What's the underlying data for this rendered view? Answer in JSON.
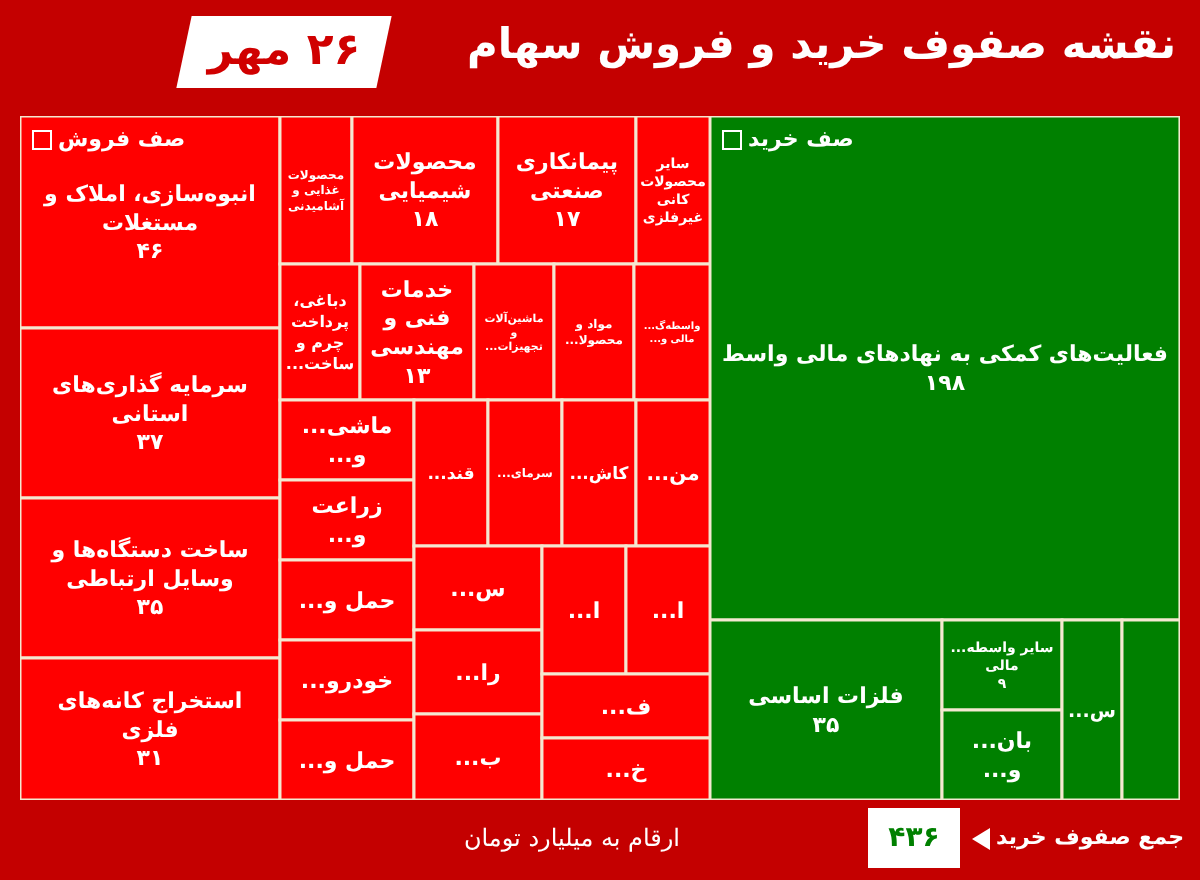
{
  "chart_data": {
    "type": "other",
    "title": "نقشه صفوف خرید و فروش سهام",
    "subtitle": "۲۶ مهر",
    "annotations": [
      "صف فروش",
      "صف خرید",
      "ارقام به میلیارد تومان",
      "جمع صفوف خرید",
      "۴۳۶"
    ],
    "categories": [
      "انبوه‌سازی، املاک و مستغلات",
      "سرمایه گذاری‌های استانی",
      "ساخت دستگاه‌ها و وسایل ارتباطی",
      "استخراج کانه‌های فلزی",
      "محصولات غذایی و آشامیدنی",
      "محصولات شیمیایی",
      "پیمانکاری صنعتی",
      "سایر محصولات کانی غیرفلزی",
      "دباغی، پرداخت چرم و ساخت...",
      "خدمات فنی و مهندسی",
      "ماشین‌آلات و تجهیزات...",
      "مواد و محصولا...",
      "واسطه‌گ... مالی و...",
      "ماشی... و...",
      "زراعت و...",
      "حمل و...",
      "خودرو...",
      "حمل و...",
      "قند...",
      "سرمای...",
      "کاش...",
      "من...",
      "س...",
      "را...",
      "ب...",
      "ا...",
      "ا...",
      "ف...",
      "خ...",
      "فعالیت‌های کمکی به نهادهای مالی واسط",
      "فلزات اساسی",
      "سایر واسطه... مالی",
      "بان... و...",
      "س...",
      null
    ],
    "values": [
      46,
      37,
      35,
      31,
      null,
      18,
      17,
      null,
      null,
      13,
      null,
      null,
      null,
      null,
      null,
      null,
      null,
      null,
      null,
      null,
      null,
      null,
      null,
      null,
      null,
      null,
      null,
      null,
      null,
      198,
      35,
      9,
      null,
      null,
      null
    ],
    "value_labels": [
      "۴۶",
      "۳۷",
      "۳۵",
      "۳۱",
      null,
      "۱۸",
      "۱۷",
      null,
      null,
      "۱۳",
      null,
      null,
      null,
      null,
      null,
      null,
      null,
      null,
      null,
      null,
      null,
      null,
      null,
      null,
      null,
      null,
      null,
      null,
      null,
      "۱۹۸",
      "۳۵",
      "۹",
      null,
      null,
      null
    ],
    "colors": [
      "#ff0000",
      "#ff0000",
      "#ff0000",
      "#ff0000",
      "#ff0000",
      "#ff0000",
      "#ff0000",
      "#ff0000",
      "#ff0000",
      "#ff0000",
      "#ff0000",
      "#ff0000",
      "#ff0000",
      "#ff0000",
      "#ff0000",
      "#ff0000",
      "#ff0000",
      "#ff0000",
      "#ff0000",
      "#ff0000",
      "#ff0000",
      "#ff0000",
      "#ff0000",
      "#ff0000",
      "#ff0000",
      "#ff0000",
      "#ff0000",
      "#ff0000",
      "#ff0000",
      "#008000",
      "#008000",
      "#008000",
      "#008000",
      "#008000",
      "#008000"
    ]
  }
}
